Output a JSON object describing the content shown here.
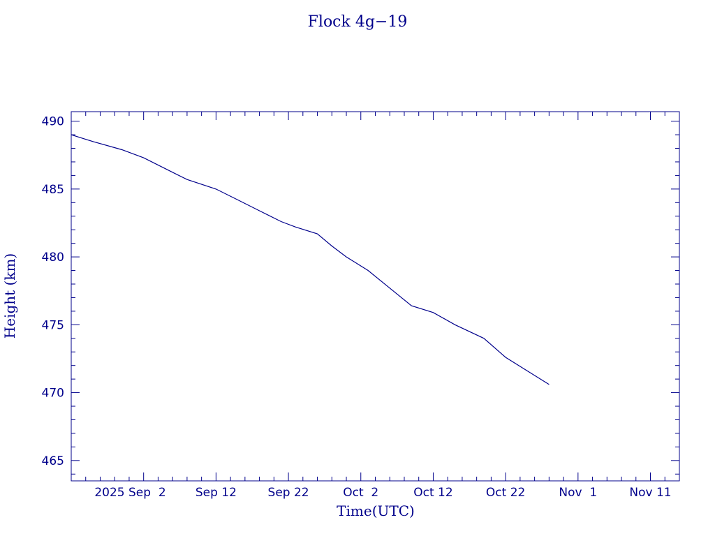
{
  "chart_data": {
    "type": "line",
    "title": "Flock 4g−19",
    "xlabel": "Time(UTC)",
    "ylabel": "Height (km)",
    "color": "#00008b",
    "x_tick_labels": [
      "2025 Sep  2",
      "Sep 12",
      "Sep 22",
      "Oct  2",
      "Oct 12",
      "Oct 22",
      "Nov  1",
      "Nov 11"
    ],
    "x_range": [
      "2025-08-23",
      "2025-11-15"
    ],
    "ylim": [
      463.5,
      490.7
    ],
    "y_ticks": [
      465,
      470,
      475,
      480,
      485,
      490
    ],
    "grid": false,
    "series": [
      {
        "x": [
          "2025-08-23",
          "2025-08-26",
          "2025-08-30",
          "2025-09-02",
          "2025-09-05",
          "2025-09-08",
          "2025-09-12",
          "2025-09-15",
          "2025-09-18",
          "2025-09-21",
          "2025-09-23",
          "2025-09-26",
          "2025-09-28",
          "2025-09-30",
          "2025-10-03",
          "2025-10-06",
          "2025-10-09",
          "2025-10-12",
          "2025-10-15",
          "2025-10-19",
          "2025-10-22",
          "2025-10-25",
          "2025-10-28"
        ],
        "y": [
          489.0,
          488.5,
          487.9,
          487.3,
          486.5,
          485.7,
          485.0,
          484.2,
          483.4,
          482.6,
          482.2,
          481.7,
          480.8,
          480.0,
          479.0,
          477.7,
          476.4,
          475.9,
          475.0,
          474.0,
          472.6,
          471.6,
          470.6
        ]
      }
    ]
  }
}
